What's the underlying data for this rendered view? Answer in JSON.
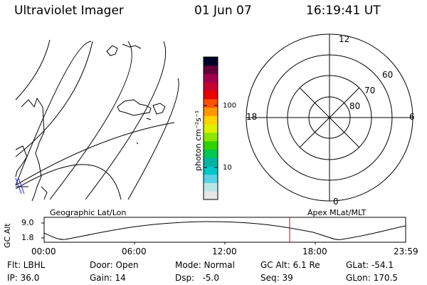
{
  "header": {
    "title": "Ultraviolet Imager",
    "date": "01 Jun 07",
    "time": "16:19:41 UT"
  },
  "colorbar": {
    "unit_label": "photon cm⁻²s⁻¹",
    "tick_labels": [
      "100",
      "10"
    ],
    "colors": [
      "#e6e6e6",
      "#b8e6e6",
      "#5ad2e6",
      "#00c8c8",
      "#00b4a0",
      "#00c850",
      "#32d200",
      "#8ce600",
      "#dcf000",
      "#ffd200",
      "#ff9600",
      "#ff5000",
      "#e60000",
      "#c80032",
      "#a00050",
      "#64003c",
      "#000028"
    ]
  },
  "polar_plot": {
    "mlt_labels": {
      "top": "12",
      "right": "6",
      "bottom": "0",
      "left": "18"
    },
    "lat_labels": [
      "60",
      "70",
      "80"
    ]
  },
  "timeline": {
    "left_label": "Geographic Lat/Lon",
    "right_label": "Apex MLat/MLT",
    "axis_title": "GC Alt",
    "y_ticks": [
      "9.0",
      "1.8"
    ],
    "x_ticks": [
      "00:00",
      "06:00",
      "12:00",
      "18:00",
      "23:59"
    ]
  },
  "status": {
    "flt": "Flt: LBHL",
    "ip": "IP: 36.0",
    "door": "Door: Open",
    "gain": "Gain: 14",
    "mode": "Mode: Normal",
    "dsp": "Dsp:   -5.0",
    "gc_alt": "GC Alt: 6.1 Re",
    "seq": "Seq: 39",
    "glat": "GLat: -54.1",
    "glon": "GLon: 170.5"
  }
}
